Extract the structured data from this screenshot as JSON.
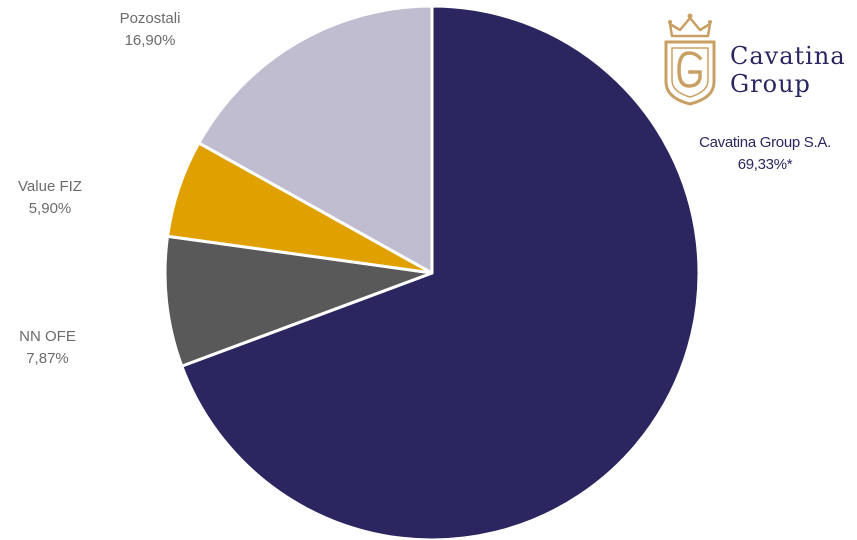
{
  "chart_data": {
    "type": "pie",
    "start_angle_deg": 0,
    "direction": "clockwise",
    "slices": [
      {
        "label": "Cavatina Group S.A.",
        "value": 69.33,
        "value_label": "69,33%*",
        "color": "#2b2660"
      },
      {
        "label": "NN OFE",
        "value": 7.87,
        "value_label": "7,87%",
        "color": "#595959"
      },
      {
        "label": "Value FIZ",
        "value": 5.9,
        "value_label": "5,90%",
        "color": "#dfa000"
      },
      {
        "label": "Pozostali",
        "value": 16.9,
        "value_label": "16,90%",
        "color": "#c0bdd1"
      }
    ]
  },
  "logo": {
    "line1": "Cavatina",
    "line2": "Group",
    "color": "#2b2660",
    "accent": "#c9a063",
    "icon": "crown-g-shield-icon"
  }
}
